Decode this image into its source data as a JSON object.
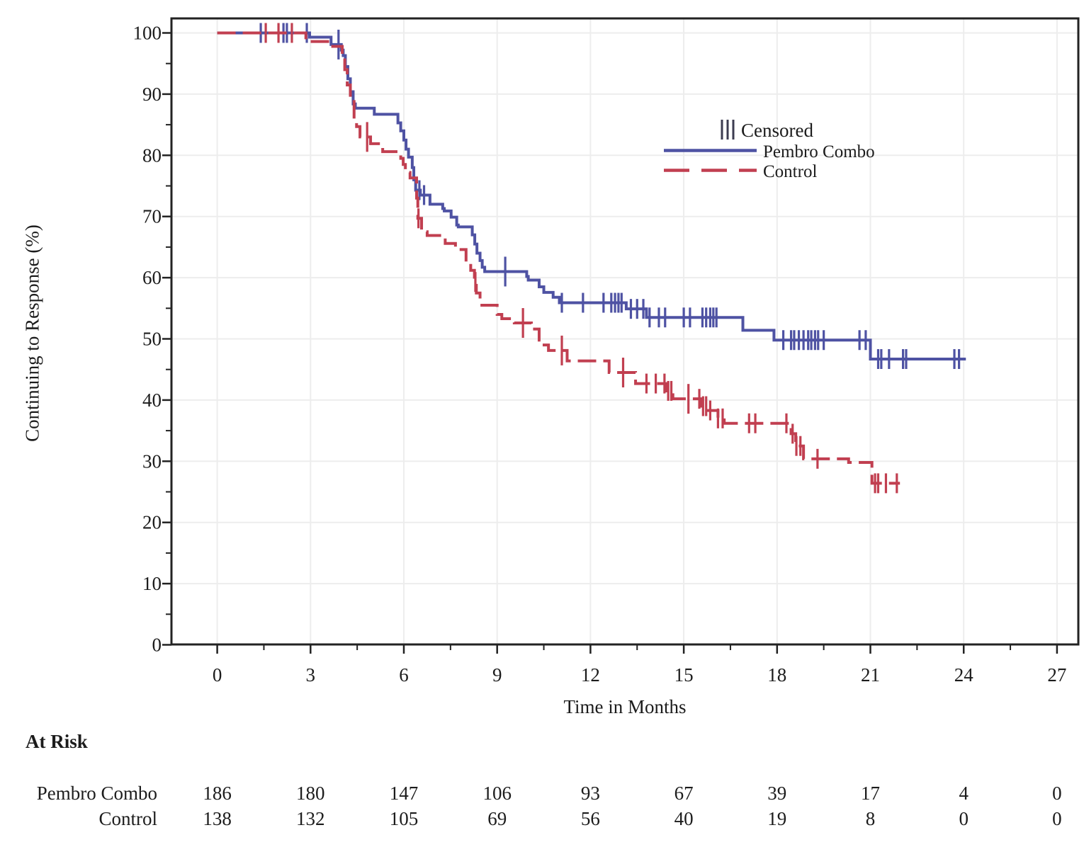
{
  "chart_data": {
    "type": "line",
    "subtype": "kaplan-meier-step",
    "title": "",
    "xlabel": "Time in Months",
    "ylabel": "Continuing to Response (%)",
    "grid": "on",
    "x_axis": {
      "min": 0,
      "max": 27,
      "major_step": 3,
      "minor_step": 1.5,
      "tick_labels": [
        "0",
        "3",
        "6",
        "9",
        "12",
        "15",
        "18",
        "21",
        "24",
        "27"
      ],
      "tick_values": [
        0,
        3,
        6,
        9,
        12,
        15,
        18,
        21,
        24,
        27
      ]
    },
    "y_axis": {
      "min": 0,
      "max": 100,
      "major_step": 10,
      "minor_step": 5,
      "tick_labels": [
        "100",
        "90",
        "80",
        "70",
        "60",
        "50",
        "40",
        "30",
        "20",
        "10",
        "0"
      ],
      "tick_values": [
        100,
        90,
        80,
        70,
        60,
        50,
        40,
        30,
        20,
        10,
        0
      ]
    },
    "legend": {
      "position": "inside-top-right",
      "censored_glyph": "|||",
      "censored_label": "Censored"
    },
    "series": [
      {
        "name": "Pembro Combo",
        "color": "#4e52a3",
        "line_style": "solid",
        "steps": [
          [
            0,
            100
          ],
          [
            2.97,
            99.3
          ],
          [
            3.66,
            98.1
          ],
          [
            3.99,
            97.2
          ],
          [
            4.05,
            96.3
          ],
          [
            4.12,
            94.5
          ],
          [
            4.2,
            92.5
          ],
          [
            4.28,
            90.4
          ],
          [
            4.37,
            88.4
          ],
          [
            4.44,
            87.7
          ],
          [
            5.05,
            86.7
          ],
          [
            5.81,
            85.3
          ],
          [
            5.9,
            84
          ],
          [
            6.0,
            82.5
          ],
          [
            6.07,
            81
          ],
          [
            6.15,
            79.7
          ],
          [
            6.27,
            78
          ],
          [
            6.32,
            76
          ],
          [
            6.38,
            74.3
          ],
          [
            6.53,
            73.5
          ],
          [
            6.84,
            72.0
          ],
          [
            7.25,
            71.3
          ],
          [
            7.3,
            70.9
          ],
          [
            7.52,
            69.9
          ],
          [
            7.7,
            68.6
          ],
          [
            7.75,
            68.3
          ],
          [
            8.2,
            67
          ],
          [
            8.28,
            65.5
          ],
          [
            8.35,
            64
          ],
          [
            8.45,
            62.8
          ],
          [
            8.52,
            61.7
          ],
          [
            8.6,
            61.0
          ],
          [
            9.95,
            60.2
          ],
          [
            10.0,
            59.6
          ],
          [
            10.35,
            58.5
          ],
          [
            10.5,
            57.6
          ],
          [
            10.8,
            56.8
          ],
          [
            11.0,
            55.9
          ],
          [
            13.15,
            54.9
          ],
          [
            13.8,
            53.5
          ],
          [
            16.9,
            51.4
          ],
          [
            17.9,
            49.8
          ],
          [
            21.0,
            46.7
          ]
        ],
        "end_time": 24.07,
        "censor_times": [
          1.4,
          2.13,
          2.24,
          2.88,
          6.5,
          6.65,
          11.08,
          11.76,
          12.42,
          12.67,
          12.79,
          12.9,
          13.0,
          13.3,
          13.5,
          13.7,
          13.9,
          14.2,
          14.4,
          15.0,
          15.2,
          15.6,
          15.72,
          15.85,
          15.95,
          16.05,
          18.2,
          18.45,
          18.55,
          18.7,
          18.85,
          19.0,
          19.1,
          19.22,
          19.32,
          19.5,
          20.65,
          20.85,
          21.25,
          21.35,
          21.6,
          22.05,
          22.15,
          23.7,
          23.85
        ],
        "censor_times_emph": [
          3.9,
          9.26
        ]
      },
      {
        "name": "Control",
        "color": "#c13f50",
        "line_style": "dashed",
        "steps": [
          [
            0,
            100
          ],
          [
            2.85,
            98.6
          ],
          [
            3.66,
            97.8
          ],
          [
            4.02,
            96.5
          ],
          [
            4.1,
            94
          ],
          [
            4.18,
            91.5
          ],
          [
            4.28,
            89.2
          ],
          [
            4.4,
            86
          ],
          [
            4.48,
            84.7
          ],
          [
            4.59,
            83.0
          ],
          [
            4.93,
            81.9
          ],
          [
            5.32,
            80.6
          ],
          [
            5.9,
            79.5
          ],
          [
            5.98,
            78.5
          ],
          [
            6.05,
            77.2
          ],
          [
            6.2,
            76.3
          ],
          [
            6.41,
            73
          ],
          [
            6.45,
            69.7
          ],
          [
            6.57,
            67.5
          ],
          [
            6.75,
            66.9
          ],
          [
            7.33,
            65.6
          ],
          [
            7.66,
            64.6
          ],
          [
            8.0,
            62.6
          ],
          [
            8.15,
            61.2
          ],
          [
            8.27,
            59.3
          ],
          [
            8.33,
            57.5
          ],
          [
            8.45,
            55.5
          ],
          [
            9.0,
            54
          ],
          [
            9.15,
            53.3
          ],
          [
            9.55,
            52.6
          ],
          [
            10.1,
            51.6
          ],
          [
            10.35,
            49.8
          ],
          [
            10.42,
            49.0
          ],
          [
            10.65,
            48.1
          ],
          [
            11.25,
            46.4
          ],
          [
            12.6,
            44.5
          ],
          [
            13.45,
            42.7
          ],
          [
            14.45,
            41.5
          ],
          [
            14.65,
            40.2
          ],
          [
            15.55,
            39
          ],
          [
            15.75,
            38.3
          ],
          [
            16.1,
            37
          ],
          [
            16.3,
            36.2
          ],
          [
            18.45,
            34.5
          ],
          [
            18.6,
            32.5
          ],
          [
            18.85,
            30.4
          ],
          [
            20.3,
            29.8
          ],
          [
            21.05,
            26.4
          ]
        ],
        "end_time": 21.95,
        "censor_times": [
          1.56,
          1.97,
          2.4,
          6.47,
          8.3,
          13.8,
          14.1,
          14.38,
          14.5,
          14.6,
          15.5,
          15.62,
          15.72,
          15.85,
          16.1,
          16.25,
          17.1,
          17.3,
          18.3,
          18.5,
          18.62,
          18.75,
          19.3,
          21.15,
          21.25,
          21.5,
          21.85
        ],
        "censor_times_emph": [
          4.82,
          9.83,
          11.08,
          13.05,
          15.15
        ]
      }
    ],
    "at_risk": {
      "title": "At Risk",
      "months": [
        0,
        3,
        6,
        9,
        12,
        15,
        18,
        21,
        24,
        27
      ],
      "rows": [
        {
          "label": "Pembro Combo",
          "counts": [
            186,
            180,
            147,
            106,
            93,
            67,
            39,
            17,
            4,
            0
          ]
        },
        {
          "label": "Control",
          "counts": [
            138,
            132,
            105,
            69,
            56,
            40,
            19,
            8,
            0,
            0
          ]
        }
      ]
    },
    "colors": {
      "frame": "#222222",
      "grid": "#ededed",
      "text": "#1c1c1c",
      "censored_glyph_color": "#3c3c50"
    }
  }
}
